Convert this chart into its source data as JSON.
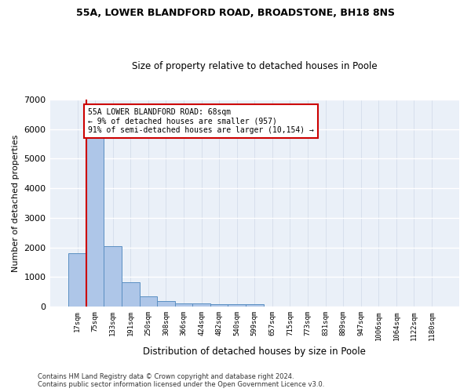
{
  "title1": "55A, LOWER BLANDFORD ROAD, BROADSTONE, BH18 8NS",
  "title2": "Size of property relative to detached houses in Poole",
  "xlabel": "Distribution of detached houses by size in Poole",
  "ylabel": "Number of detached properties",
  "bar_color": "#aec6e8",
  "bar_edge_color": "#5a8fc2",
  "bg_color": "#eaf0f8",
  "grid_color": "#ffffff",
  "categories": [
    "17sqm",
    "75sqm",
    "133sqm",
    "191sqm",
    "250sqm",
    "308sqm",
    "366sqm",
    "424sqm",
    "482sqm",
    "540sqm",
    "599sqm",
    "657sqm",
    "715sqm",
    "773sqm",
    "831sqm",
    "889sqm",
    "947sqm",
    "1006sqm",
    "1064sqm",
    "1122sqm",
    "1180sqm"
  ],
  "values": [
    1800,
    5750,
    2050,
    820,
    340,
    185,
    120,
    110,
    95,
    85,
    75,
    0,
    0,
    0,
    0,
    0,
    0,
    0,
    0,
    0,
    0
  ],
  "property_line_x": 0.5,
  "property_line_color": "#cc0000",
  "annotation_box_text": "55A LOWER BLANDFORD ROAD: 68sqm\n← 9% of detached houses are smaller (957)\n91% of semi-detached houses are larger (10,154) →",
  "annotation_box_color": "#cc0000",
  "annotation_box_fill": "#ffffff",
  "ylim": [
    0,
    7000
  ],
  "yticks": [
    0,
    1000,
    2000,
    3000,
    4000,
    5000,
    6000,
    7000
  ],
  "footnote1": "Contains HM Land Registry data © Crown copyright and database right 2024.",
  "footnote2": "Contains public sector information licensed under the Open Government Licence v3.0."
}
